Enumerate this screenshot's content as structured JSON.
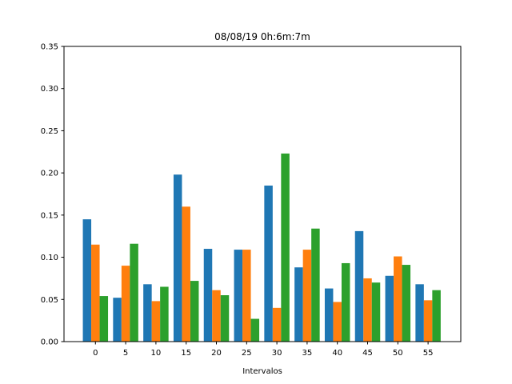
{
  "chart_data": {
    "type": "bar",
    "title": "08/08/19 0h:6m:7m",
    "xlabel": "Intervalos",
    "ylabel": "",
    "categories": [
      "0",
      "5",
      "10",
      "15",
      "20",
      "25",
      "30",
      "35",
      "40",
      "45",
      "50",
      "55"
    ],
    "ylim": [
      0,
      0.35
    ],
    "yticks": [
      "0.00",
      "0.05",
      "0.10",
      "0.15",
      "0.20",
      "0.25",
      "0.30",
      "0.35"
    ],
    "grid": false,
    "series": [
      {
        "color": "#1f77b4",
        "values": [
          0.145,
          0.052,
          0.068,
          0.198,
          0.11,
          0.109,
          0.185,
          0.088,
          0.063,
          0.131,
          0.078,
          0.068
        ]
      },
      {
        "color": "#ff7f0e",
        "values": [
          0.115,
          0.09,
          0.048,
          0.16,
          0.061,
          0.109,
          0.04,
          0.109,
          0.047,
          0.075,
          0.101,
          0.049
        ]
      },
      {
        "color": "#2ca02c",
        "values": [
          0.054,
          0.116,
          0.065,
          0.072,
          0.055,
          0.027,
          0.223,
          0.134,
          0.093,
          0.07,
          0.091,
          0.061
        ]
      }
    ]
  }
}
